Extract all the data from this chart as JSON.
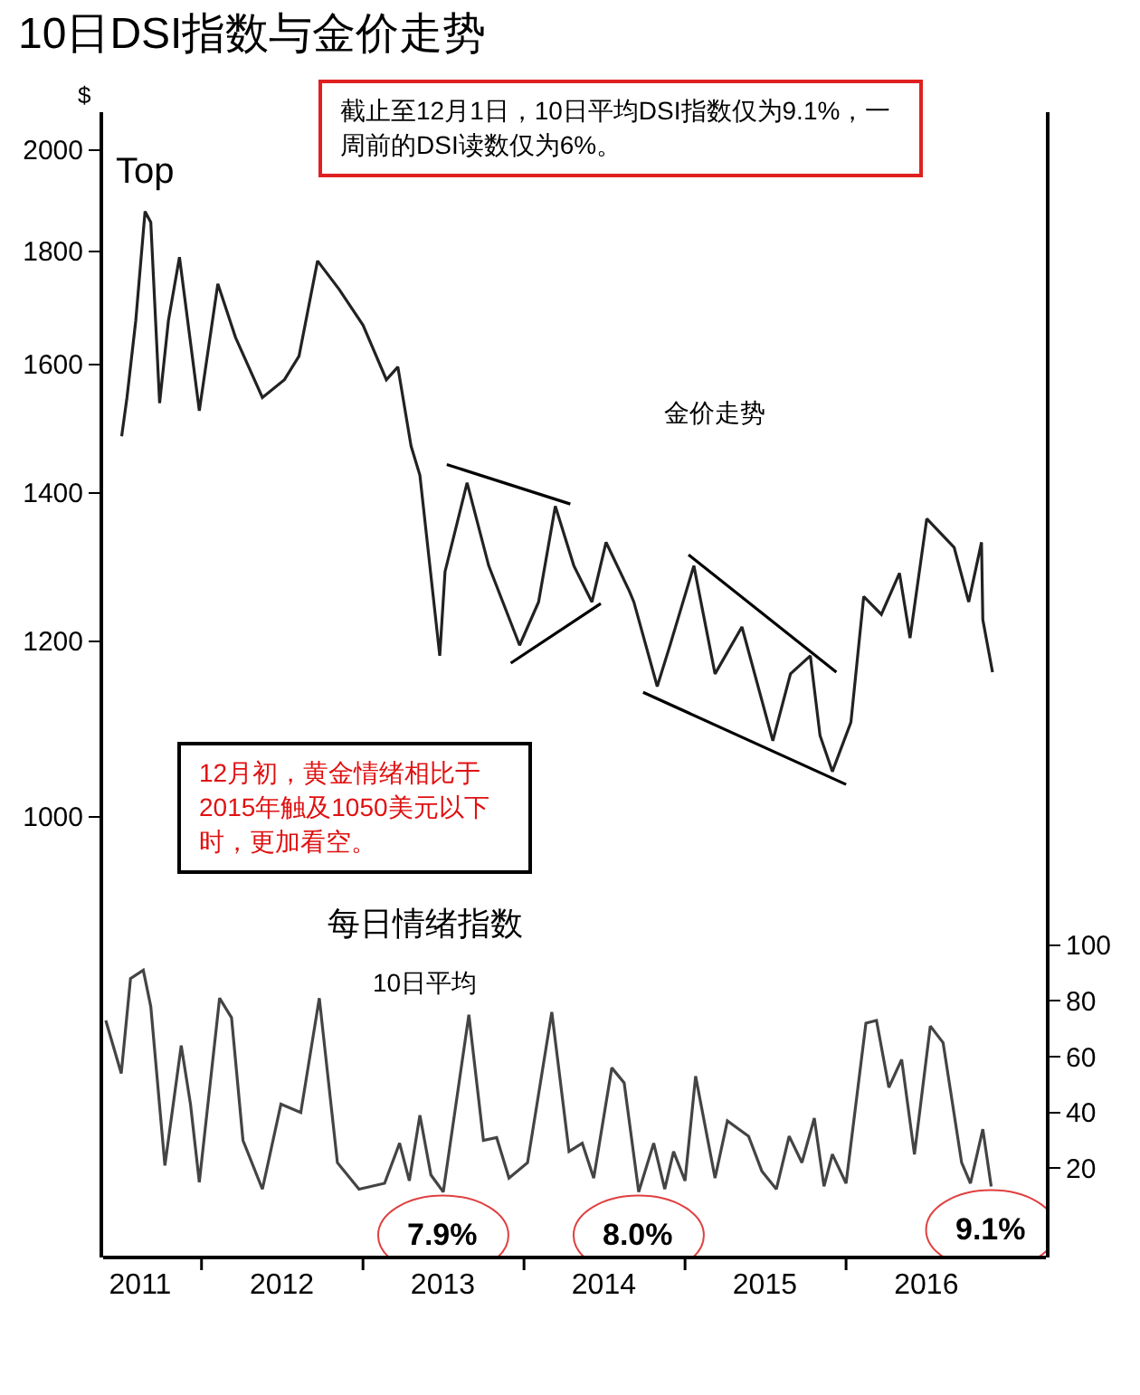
{
  "chart_data": [
    {
      "type": "line",
      "title": "10日DSI指数与金价走势",
      "ylabel": "$",
      "log": true,
      "ylim": [
        930,
        2080
      ],
      "yticks": [
        1000,
        1200,
        1400,
        1600,
        1800,
        2000
      ],
      "xlim": [
        "2011-05-23",
        "2017-03-29"
      ],
      "tick_labels": "y",
      "annotations": [
        "截止至12月1日，10日平均DSI指数仅为9.1%，一周前的DSI读数仅为6%。",
        "金价走势",
        "12月初，黄金情绪相比于2015年触及1050美元以下时，更加看空。",
        {
          "text": "Top",
          "x": "2011-08-26",
          "y": 1876
        }
      ],
      "series": [
        {
          "color": "#222222",
          "x": [
            "2011-07-04",
            "2011-07-16",
            "2011-08-05",
            "2011-08-26",
            "2011-09-08",
            "2011-09-28",
            "2011-10-18",
            "2011-11-12",
            "2011-12-27",
            "2012-02-07",
            "2012-03-18",
            "2012-05-18",
            "2012-07-07",
            "2012-08-09",
            "2012-09-20",
            "2012-11-08",
            "2013-01-01",
            "2013-02-23",
            "2013-03-21",
            "2013-04-20",
            "2013-05-10",
            "2013-06-24",
            "2013-07-06",
            "2013-08-25",
            "2013-10-13",
            "2013-12-22",
            "2014-02-03",
            "2014-03-13",
            "2014-04-24",
            "2014-06-04",
            "2014-07-06",
            "2014-08-28",
            "2014-09-07",
            "2014-10-30",
            "2014-11-28",
            "2015-01-21",
            "2015-03-10",
            "2015-05-10",
            "2015-07-19",
            "2015-08-28",
            "2015-10-12",
            "2015-11-03",
            "2015-12-01",
            "2016-01-12",
            "2016-02-10",
            "2016-03-21",
            "2016-05-01",
            "2016-05-25",
            "2016-07-02",
            "2016-09-02",
            "2016-10-05",
            "2016-11-03",
            "2016-11-06",
            "2016-11-28"
          ],
          "values": [
            1485,
            1546,
            1675,
            1876,
            1855,
            1537,
            1675,
            1789,
            1525,
            1740,
            1646,
            1546,
            1575,
            1614,
            1782,
            1730,
            1667,
            1575,
            1596,
            1470,
            1426,
            1182,
            1290,
            1415,
            1298,
            1195,
            1250,
            1381,
            1298,
            1250,
            1330,
            1264,
            1250,
            1145,
            1195,
            1298,
            1160,
            1218,
            1082,
            1160,
            1182,
            1088,
            1048,
            1103,
            1257,
            1234,
            1288,
            1204,
            1363,
            1323,
            1250,
            1330,
            1227,
            1162
          ]
        },
        {
          "color": "#000000",
          "x": [
            "2013-07-10",
            "2014-04-16"
          ],
          "values": [
            1442,
            1384
          ]
        },
        {
          "color": "#000000",
          "x": [
            "2013-12-02",
            "2014-06-24"
          ],
          "values": [
            1173,
            1248
          ]
        },
        {
          "color": "#000000",
          "x": [
            "2015-01-09",
            "2015-12-10"
          ],
          "values": [
            1313,
            1162
          ]
        },
        {
          "color": "#000000",
          "x": [
            "2014-09-28",
            "2016-01-01"
          ],
          "values": [
            1138,
            1034
          ]
        }
      ]
    },
    {
      "type": "line",
      "title": "每日情绪指数",
      "subtitle": "10日平均",
      "ylim": [
        -12,
        121
      ],
      "yticks": [
        20,
        40,
        60,
        80,
        100
      ],
      "xlim": [
        "2011-05-23",
        "2017-03-29"
      ],
      "xticks": [
        {
          "value": "2011-08-15",
          "label": "2011"
        },
        {
          "value": "2012-01-01",
          "label": null
        },
        {
          "value": "2012-07-01",
          "label": "2012"
        },
        {
          "value": "2013-01-01",
          "label": null
        },
        {
          "value": "2013-07-01",
          "label": "2013"
        },
        {
          "value": "2014-01-01",
          "label": null
        },
        {
          "value": "2014-07-01",
          "label": "2014"
        },
        {
          "value": "2015-01-01",
          "label": null
        },
        {
          "value": "2015-07-01",
          "label": "2015"
        },
        {
          "value": "2016-01-01",
          "label": null
        },
        {
          "value": "2016-07-01",
          "label": "2016"
        }
      ],
      "annotations": [
        {
          "text": "7.9%",
          "x": "2013-07-02",
          "y": 11.5
        },
        {
          "text": "8.0%",
          "x": "2014-09-18",
          "y": 11.5
        },
        {
          "text": "9.1%",
          "x": "2016-11-25",
          "y": 13.5
        }
      ],
      "series": [
        {
          "color": "#444444",
          "x": [
            "2011-05-29",
            "2011-07-03",
            "2011-07-24",
            "2011-08-22",
            "2011-09-08",
            "2011-10-10",
            "2011-11-16",
            "2011-12-07",
            "2011-12-27",
            "2012-02-11",
            "2012-03-09",
            "2012-04-04",
            "2012-05-18",
            "2012-06-29",
            "2012-08-13",
            "2012-09-24",
            "2012-11-04",
            "2012-12-23",
            "2013-02-19",
            "2013-03-25",
            "2013-04-16",
            "2013-05-10",
            "2013-06-04",
            "2013-07-02",
            "2013-08-29",
            "2013-10-01",
            "2013-10-31",
            "2013-11-28",
            "2014-01-09",
            "2014-03-05",
            "2014-04-13",
            "2014-05-13",
            "2014-06-08",
            "2014-07-19",
            "2014-08-16",
            "2014-09-18",
            "2014-10-22",
            "2014-11-16",
            "2014-12-06",
            "2015-01-01",
            "2015-01-25",
            "2015-03-10",
            "2015-04-07",
            "2015-05-25",
            "2015-06-24",
            "2015-07-27",
            "2015-08-25",
            "2015-09-23",
            "2015-10-21",
            "2015-11-12",
            "2015-12-01",
            "2016-01-01",
            "2016-02-15",
            "2016-03-10",
            "2016-04-07",
            "2016-05-06",
            "2016-06-04",
            "2016-07-10",
            "2016-08-08",
            "2016-09-19",
            "2016-10-09",
            "2016-11-06",
            "2016-11-25"
          ],
          "values": [
            73,
            54,
            88,
            91,
            78,
            21,
            64,
            43,
            15,
            81,
            74,
            30,
            12.5,
            43,
            40,
            81,
            22,
            12.5,
            14.6,
            29,
            15.5,
            39,
            17.6,
            11.5,
            75,
            30,
            31,
            16.5,
            22,
            76,
            26,
            29,
            16.5,
            56,
            50.6,
            11.5,
            29,
            12.5,
            26,
            15.5,
            53,
            16.5,
            37,
            31.5,
            19,
            12.5,
            31.5,
            22,
            38,
            13.5,
            25,
            14.6,
            72,
            73,
            49,
            59,
            25,
            71,
            65,
            22,
            14.6,
            34,
            13.5
          ]
        }
      ]
    }
  ]
}
